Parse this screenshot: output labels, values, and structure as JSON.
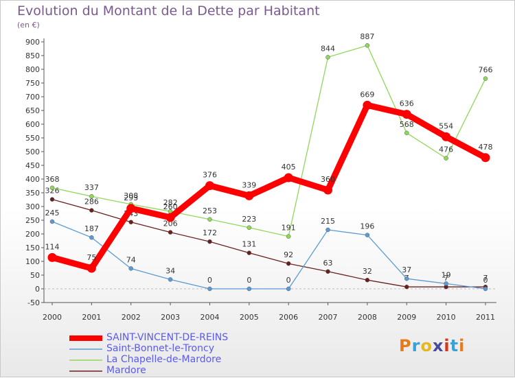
{
  "header": {
    "title": "Evolution du Montant de la Dette par Habitant",
    "subtitle": "(en €)"
  },
  "logo": {
    "text": "Proxiti",
    "colors": [
      "#e87a1a",
      "#3aa0d8",
      "#e8b81a",
      "#4a4a9a",
      "#d8341a",
      "#3aa0d8",
      "#e87a1a"
    ]
  },
  "chart_data": {
    "type": "line",
    "x": [
      2000,
      2001,
      2002,
      2003,
      2004,
      2005,
      2006,
      2007,
      2008,
      2009,
      2010,
      2011
    ],
    "ylim": [
      -50,
      900
    ],
    "yticks": [
      -50,
      0,
      50,
      100,
      150,
      200,
      250,
      300,
      350,
      400,
      450,
      500,
      550,
      600,
      650,
      700,
      750,
      800,
      850,
      900
    ],
    "grid": false,
    "legend_position": "bottom-left",
    "series": [
      {
        "name": "Mardore",
        "color": "#6a1f1f",
        "values": [
          326,
          286,
          243,
          206,
          172,
          131,
          92,
          63,
          32,
          7,
          7,
          7
        ]
      },
      {
        "name": "Saint-Bonnet-le-Troncy",
        "color": "#5b9bd5",
        "values": [
          245,
          187,
          74,
          34,
          0,
          0,
          0,
          215,
          196,
          37,
          19,
          0
        ]
      },
      {
        "name": "La Chapelle-de-Mardore",
        "color": "#8fd85a",
        "values": [
          368,
          337,
          308,
          282,
          253,
          223,
          191,
          844,
          887,
          568,
          476,
          766
        ]
      },
      {
        "name": "SAINT-VINCENT-DE-REINS",
        "color": "#ff0000",
        "values": [
          114,
          75,
          293,
          260,
          376,
          339,
          405,
          360,
          669,
          636,
          554,
          478
        ]
      }
    ],
    "legend_order": [
      "SAINT-VINCENT-DE-REINS",
      "Saint-Bonnet-le-Troncy",
      "La Chapelle-de-Mardore",
      "Mardore"
    ]
  }
}
